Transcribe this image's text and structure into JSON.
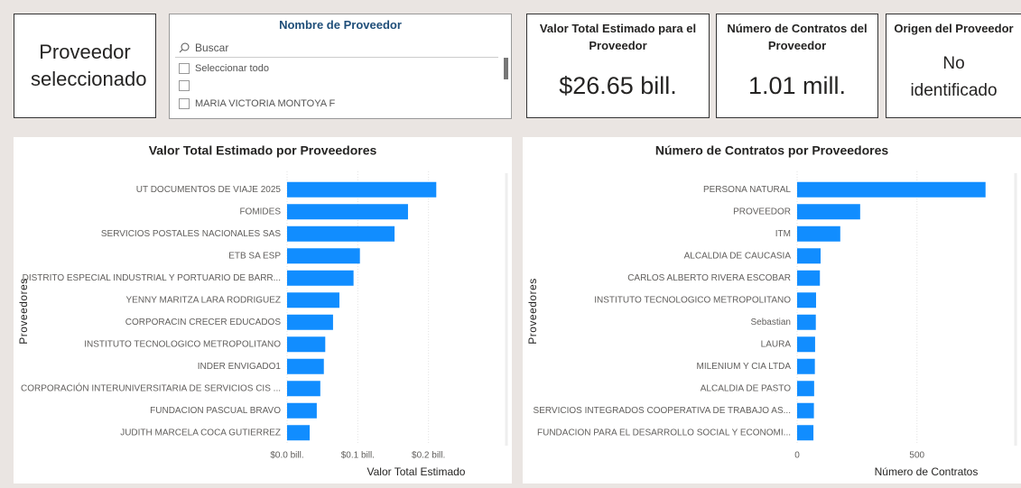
{
  "selected_card": {
    "text": "Proveedor seleccionado"
  },
  "slicer": {
    "title": "Nombre de Proveedor",
    "search_placeholder": "Buscar",
    "items": [
      "Seleccionar todo",
      "MARIA VICTORIA MONTOYA F"
    ]
  },
  "cards": [
    {
      "title": "Valor Total Estimado para el Proveedor",
      "value": "$26.65 bill."
    },
    {
      "title": "Número de Contratos del Proveedor",
      "value": "1.01 mill."
    },
    {
      "title": "Origen del Proveedor",
      "value": "No identificado"
    }
  ],
  "chart_data": [
    {
      "type": "bar",
      "orientation": "horizontal",
      "title": "Valor Total Estimado por Proveedores",
      "x_label": "Valor Total Estimado",
      "y_label": "Proveedores",
      "categories": [
        "UT DOCUMENTOS DE VIAJE 2025",
        "FOMIDES",
        "SERVICIOS POSTALES NACIONALES SAS",
        "ETB SA ESP",
        "DISTRITO ESPECIAL INDUSTRIAL Y PORTUARIO DE BARR...",
        "YENNY MARITZA LARA RODRIGUEZ",
        "CORPORACIN CRECER EDUCADOS",
        "INSTITUTO TECNOLOGICO METROPOLITANO",
        "INDER ENVIGADO1",
        "CORPORACIÓN INTERUNIVERSITARIA DE SERVICIOS CIS ...",
        "FUNDACION PASCUAL BRAVO",
        "JUDITH MARCELA COCA GUTIERREZ"
      ],
      "values": [
        0.211,
        0.171,
        0.152,
        0.103,
        0.094,
        0.074,
        0.065,
        0.054,
        0.052,
        0.047,
        0.042,
        0.032
      ],
      "color": "#118dff",
      "xlim": [
        0,
        0.3
      ],
      "xticks": [
        {
          "value": 0,
          "label": "$0.0 bill."
        },
        {
          "value": 0.1,
          "label": "$0.1 bill."
        },
        {
          "value": 0.2,
          "label": "$0.2 bill."
        }
      ],
      "grid": true
    },
    {
      "type": "bar",
      "orientation": "horizontal",
      "title": "Número de Contratos por Proveedores",
      "x_label": "Número de Contratos",
      "y_label": "Proveedores",
      "categories": [
        "PERSONA NATURAL",
        "PROVEEDOR",
        "ITM",
        "ALCALDIA DE CAUCASIA",
        "CARLOS ALBERTO RIVERA ESCOBAR",
        "INSTITUTO TECNOLOGICO METROPOLITANO",
        "Sebastian",
        "LAURA",
        "MILENIUM Y CIA LTDA",
        "ALCALDIA DE PASTO",
        "SERVICIOS INTEGRADOS COOPERATIVA DE TRABAJO AS...",
        "FUNDACION PARA EL DESARROLLO SOCIAL Y ECONOMI..."
      ],
      "values": [
        786,
        263,
        180,
        98,
        95,
        79,
        78,
        75,
        74,
        71,
        70,
        68
      ],
      "color": "#118dff",
      "xlim": [
        0,
        900
      ],
      "xticks": [
        0,
        500
      ],
      "grid": true
    }
  ]
}
